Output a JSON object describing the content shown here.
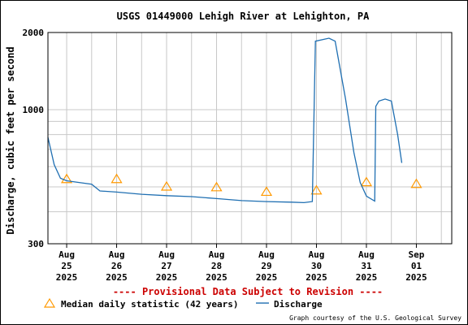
{
  "chart_data": {
    "type": "line",
    "title": "USGS 01449000 Lehigh River at Lehighton, PA",
    "ylabel": "Discharge, cubic feet per second",
    "xlabel": "",
    "y_scale": "log",
    "ylim": [
      300,
      2000
    ],
    "y_ticks": [
      300,
      1000,
      2000
    ],
    "y_tick_labels": [
      "300",
      "1000",
      "2000"
    ],
    "grid": true,
    "x_ticks": [
      {
        "date": "2025-08-25",
        "month": "Aug",
        "day": "25",
        "year": "2025"
      },
      {
        "date": "2025-08-26",
        "month": "Aug",
        "day": "26",
        "year": "2025"
      },
      {
        "date": "2025-08-27",
        "month": "Aug",
        "day": "27",
        "year": "2025"
      },
      {
        "date": "2025-08-28",
        "month": "Aug",
        "day": "28",
        "year": "2025"
      },
      {
        "date": "2025-08-29",
        "month": "Aug",
        "day": "29",
        "year": "2025"
      },
      {
        "date": "2025-08-30",
        "month": "Aug",
        "day": "30",
        "year": "2025"
      },
      {
        "date": "2025-08-31",
        "month": "Aug",
        "day": "31",
        "year": "2025"
      },
      {
        "date": "2025-09-01",
        "month": "Sep",
        "day": "01",
        "year": "2025"
      }
    ],
    "xlim": [
      "2025-08-24 15:00",
      "2025-09-01 17:00"
    ],
    "series": [
      {
        "name": "Median daily statistic (42 years)",
        "marker": "triangle",
        "color": "#ff9900",
        "points": [
          {
            "x": "2025-08-25 00:00",
            "y": 535
          },
          {
            "x": "2025-08-26 00:00",
            "y": 535
          },
          {
            "x": "2025-08-27 00:00",
            "y": 500
          },
          {
            "x": "2025-08-28 00:00",
            "y": 497
          },
          {
            "x": "2025-08-29 00:00",
            "y": 477
          },
          {
            "x": "2025-08-30 00:00",
            "y": 483
          },
          {
            "x": "2025-08-31 00:00",
            "y": 520
          },
          {
            "x": "2025-09-01 00:00",
            "y": 512
          }
        ]
      },
      {
        "name": "Discharge",
        "color": "#1f6fb2",
        "points": [
          {
            "x": "2025-08-24 15:00",
            "y": 780
          },
          {
            "x": "2025-08-24 18:00",
            "y": 610
          },
          {
            "x": "2025-08-24 21:00",
            "y": 540
          },
          {
            "x": "2025-08-25 00:00",
            "y": 528
          },
          {
            "x": "2025-08-25 06:00",
            "y": 520
          },
          {
            "x": "2025-08-25 12:00",
            "y": 512
          },
          {
            "x": "2025-08-25 16:00",
            "y": 482
          },
          {
            "x": "2025-08-26 00:00",
            "y": 477
          },
          {
            "x": "2025-08-26 12:00",
            "y": 468
          },
          {
            "x": "2025-08-27 00:00",
            "y": 462
          },
          {
            "x": "2025-08-27 12:00",
            "y": 458
          },
          {
            "x": "2025-08-28 00:00",
            "y": 450
          },
          {
            "x": "2025-08-28 12:00",
            "y": 442
          },
          {
            "x": "2025-08-29 00:00",
            "y": 438
          },
          {
            "x": "2025-08-29 12:00",
            "y": 436
          },
          {
            "x": "2025-08-29 18:00",
            "y": 434
          },
          {
            "x": "2025-08-29 22:00",
            "y": 438
          },
          {
            "x": "2025-08-29 23:30",
            "y": 1850
          },
          {
            "x": "2025-08-30 06:00",
            "y": 1900
          },
          {
            "x": "2025-08-30 09:00",
            "y": 1850
          },
          {
            "x": "2025-08-30 14:00",
            "y": 1100
          },
          {
            "x": "2025-08-30 18:00",
            "y": 680
          },
          {
            "x": "2025-08-30 21:00",
            "y": 520
          },
          {
            "x": "2025-08-31 00:00",
            "y": 460
          },
          {
            "x": "2025-08-31 04:00",
            "y": 440
          },
          {
            "x": "2025-08-31 04:30",
            "y": 1030
          },
          {
            "x": "2025-08-31 06:00",
            "y": 1080
          },
          {
            "x": "2025-08-31 09:00",
            "y": 1100
          },
          {
            "x": "2025-08-31 12:00",
            "y": 1080
          },
          {
            "x": "2025-08-31 15:00",
            "y": 800
          },
          {
            "x": "2025-08-31 17:00",
            "y": 620
          }
        ]
      }
    ],
    "notice": "---- Provisional Data Subject to Revision ----",
    "legend": [
      {
        "label": "Median daily statistic (42 years)",
        "marker": "triangle",
        "color": "#ff9900"
      },
      {
        "label": "Discharge",
        "marker": "line",
        "color": "#1f6fb2"
      }
    ],
    "legend_position": "bottom",
    "credit": "Graph courtesy of the U.S. Geological Survey"
  }
}
